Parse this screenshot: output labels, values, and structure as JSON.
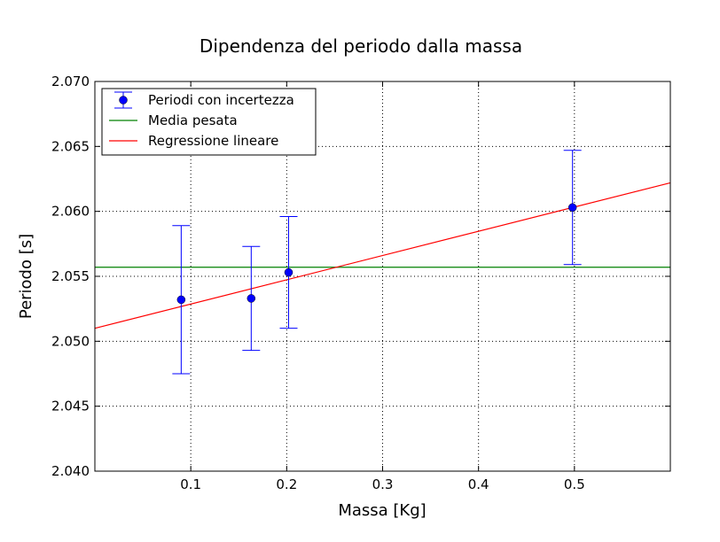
{
  "chart_data": {
    "type": "scatter",
    "title": "Dipendenza del periodo dalla massa",
    "xlabel": "Massa [Kg]",
    "ylabel": "Periodo [s]",
    "xlim": [
      0.0,
      0.6
    ],
    "ylim": [
      2.04,
      2.07
    ],
    "grid": true,
    "legend_position": "top-left",
    "x_ticks": [
      "0.1",
      "0.2",
      "0.3",
      "0.4",
      "0.5"
    ],
    "x_tick_values": [
      0.1,
      0.2,
      0.3,
      0.4,
      0.5
    ],
    "y_ticks": [
      "2.040",
      "2.045",
      "2.050",
      "2.055",
      "2.060",
      "2.065",
      "2.070"
    ],
    "y_tick_values": [
      2.04,
      2.045,
      2.05,
      2.055,
      2.06,
      2.065,
      2.07
    ],
    "series": [
      {
        "name": "Periodi con incertezza",
        "kind": "errorbar",
        "color": "#0000ff",
        "x": [
          0.09,
          0.163,
          0.202,
          0.498
        ],
        "y": [
          2.0532,
          2.0533,
          2.0553,
          2.0603
        ],
        "err": [
          0.0057,
          0.004,
          0.0043,
          0.0044
        ]
      },
      {
        "name": "Media pesata",
        "kind": "hline",
        "color": "#008000",
        "y": 2.0557
      },
      {
        "name": "Regressione lineare",
        "kind": "line",
        "color": "#ff0000",
        "x": [
          0.0,
          0.6
        ],
        "y": [
          2.051,
          2.0622
        ]
      }
    ]
  }
}
